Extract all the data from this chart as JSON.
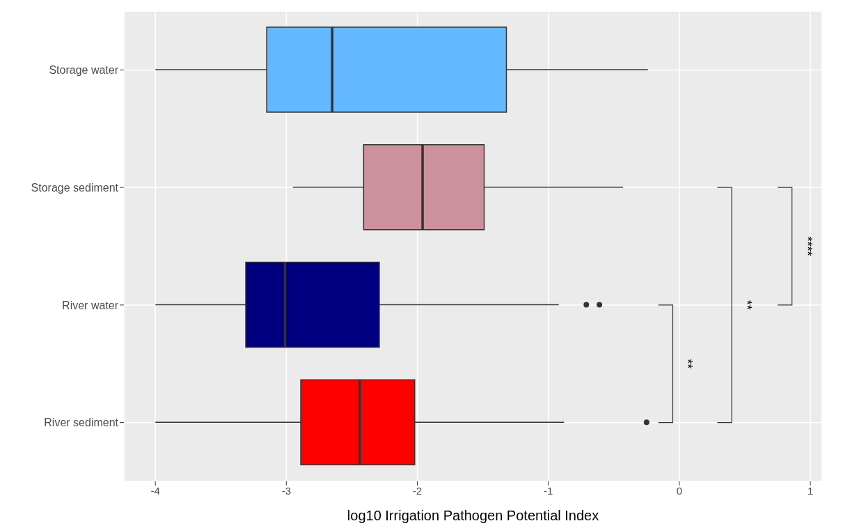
{
  "chart_data": {
    "type": "box",
    "orientation": "horizontal",
    "xlabel": "log10 Irrigation Pathogen Potential Index",
    "categories": [
      "Storage water",
      "Storage sediment",
      "River water",
      "River sediment"
    ],
    "colors": [
      "#63b8ff",
      "#cd919e",
      "#000080",
      "#ff0000"
    ],
    "boxes": [
      {
        "low": -4,
        "q1": -3.15,
        "median": -2.65,
        "q3": -1.32,
        "high": -0.24
      },
      {
        "low": -2.95,
        "q1": -2.41,
        "median": -1.96,
        "q3": -1.49,
        "high": -0.43
      },
      {
        "low": -4,
        "q1": -3.31,
        "median": -3.01,
        "q3": -2.29,
        "high": -0.92,
        "outliers": [
          -0.71,
          -0.61
        ]
      },
      {
        "low": -4,
        "q1": -2.89,
        "median": -2.44,
        "q3": -2.02,
        "high": -0.88,
        "outliers": [
          -0.25
        ]
      }
    ],
    "xlim": [
      -4.24,
      1.09
    ],
    "xticks": [
      -4,
      -3,
      -2,
      -1,
      0,
      1
    ],
    "grid": true,
    "annotations": [
      "**",
      "**",
      "****"
    ]
  }
}
